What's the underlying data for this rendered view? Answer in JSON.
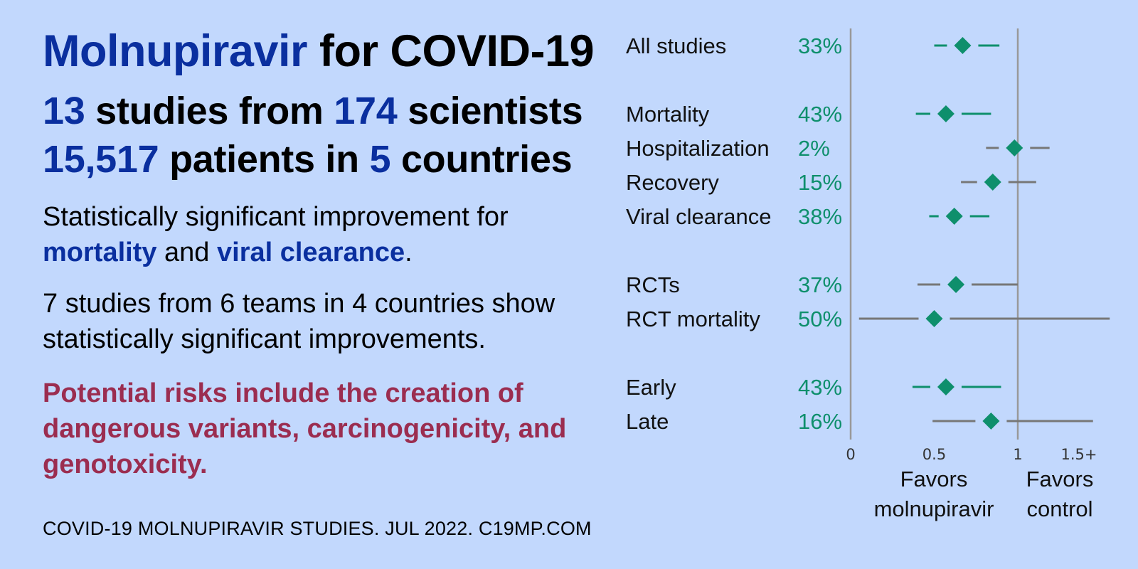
{
  "header": {
    "drug": "Molnupiravir",
    "rest": " for COVID-19"
  },
  "stats": {
    "studies": "13",
    "studies_text": " studies from ",
    "scientists": "174",
    "scientists_text": " scientists",
    "patients": "15,517",
    "patients_text": " patients in ",
    "countries": "5",
    "countries_text": " countries"
  },
  "summary": {
    "lead": "Statistically significant improvement for ",
    "mortality": "mortality",
    "and": " and ",
    "viral": "viral clearance",
    "end": "."
  },
  "teams": "7 studies from 6 teams in 4 countries show statistically significant improvements.",
  "risks": "Potential risks include the creation of dangerous variants, carcinogenicity, and genotoxicity.",
  "footer": "COVID-19 MOLNUPIRAVIR STUDIES. JUL 2022. C19MP.COM",
  "colors": {
    "background": "#c2d8fd",
    "accent_blue": "#0a2f9f",
    "risk_red": "#9b2d50",
    "marker_green": "#0e8f6c",
    "ci_gray": "#777777",
    "axis_gray": "#999999"
  },
  "chart_data": {
    "type": "forest",
    "xlim": [
      0,
      1.5
    ],
    "ticks": [
      {
        "value": 0,
        "label": "0"
      },
      {
        "value": 0.5,
        "label": "0.5"
      },
      {
        "value": 1,
        "label": "1"
      },
      {
        "value": 1.5,
        "label": "1.5+"
      }
    ],
    "reference_line": 1,
    "xlabel_left": [
      "Favors",
      "molnupiravir"
    ],
    "xlabel_right": [
      "Favors",
      "control"
    ],
    "rows": [
      {
        "label": "All studies",
        "improvement": "33%",
        "estimate": 0.67,
        "ci": [
          0.5,
          0.89
        ],
        "significant": true
      },
      {
        "label": "Mortality",
        "improvement": "43%",
        "estimate": 0.57,
        "ci": [
          0.39,
          0.84
        ],
        "significant": true
      },
      {
        "label": "Hospitalization",
        "improvement": "2%",
        "estimate": 0.98,
        "ci": [
          0.81,
          1.19
        ],
        "significant": false
      },
      {
        "label": "Recovery",
        "improvement": "15%",
        "estimate": 0.85,
        "ci": [
          0.66,
          1.11
        ],
        "significant": false
      },
      {
        "label": "Viral clearance",
        "improvement": "38%",
        "estimate": 0.62,
        "ci": [
          0.47,
          0.83
        ],
        "significant": true
      },
      {
        "label": "RCTs",
        "improvement": "37%",
        "estimate": 0.63,
        "ci": [
          0.4,
          1.0
        ],
        "significant": false
      },
      {
        "label": "RCT mortality",
        "improvement": "50%",
        "estimate": 0.5,
        "ci": [
          0.05,
          1.55
        ],
        "significant": false
      },
      {
        "label": "Early",
        "improvement": "43%",
        "estimate": 0.57,
        "ci": [
          0.37,
          0.9
        ],
        "significant": true
      },
      {
        "label": "Late",
        "improvement": "16%",
        "estimate": 0.84,
        "ci": [
          0.49,
          1.45
        ],
        "significant": false
      }
    ]
  }
}
